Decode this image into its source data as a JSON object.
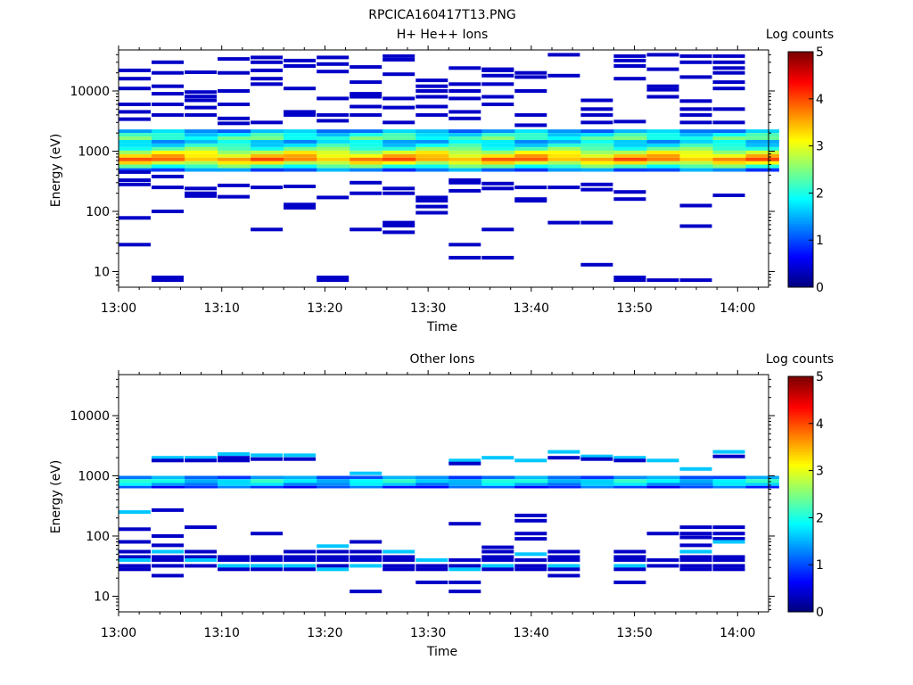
{
  "figure": {
    "title": "RPCICA160417T13.PNG"
  },
  "colorbar": {
    "label": "Log counts",
    "ticks": [
      "0",
      "1",
      "2",
      "3",
      "4",
      "5"
    ],
    "range": [
      0,
      5
    ],
    "colormap": "jet"
  },
  "chart_data": [
    {
      "type": "heatmap",
      "title": "H+ He++ Ions",
      "xlabel": "Time",
      "ylabel": "Energy (eV)",
      "x_range_minutes": [
        0,
        63
      ],
      "y_scale": "log",
      "y_range": [
        5.5,
        48000
      ],
      "x_ticks": [
        "13:00",
        "13:10",
        "13:20",
        "13:30",
        "13:40",
        "13:50",
        "14:00"
      ],
      "y_ticks": [
        "10",
        "100",
        "1000",
        "10000"
      ],
      "time_bin_minutes": 3.2,
      "time_bins": 20,
      "bands": [
        {
          "e_lo": 2000,
          "e_hi": 2300,
          "value": 1.4
        },
        {
          "e_lo": 1750,
          "e_hi": 2000,
          "value": 1.9
        },
        {
          "e_lo": 1530,
          "e_hi": 1750,
          "value": 2.2
        },
        {
          "e_lo": 1340,
          "e_hi": 1530,
          "value": 1.6
        },
        {
          "e_lo": 1170,
          "e_hi": 1340,
          "value": 1.9
        },
        {
          "e_lo": 1020,
          "e_hi": 1170,
          "value": 2.3
        },
        {
          "e_lo": 890,
          "e_hi": 1020,
          "value": 2.9
        },
        {
          "e_lo": 780,
          "e_hi": 890,
          "value": 3.3
        },
        {
          "e_lo": 680,
          "e_hi": 780,
          "value": 3.7
        },
        {
          "e_lo": 600,
          "e_hi": 680,
          "value": 3.0
        },
        {
          "e_lo": 520,
          "e_hi": 600,
          "value": 2.2
        },
        {
          "e_lo": 455,
          "e_hi": 520,
          "value": 1.2
        }
      ],
      "sparse": [
        {
          "t": 0,
          "e": [
            22000,
            16000,
            11000,
            6000,
            4500,
            3400,
            450,
            330,
            280,
            78,
            28
          ]
        },
        {
          "t": 1,
          "e": [
            30000,
            20000,
            12000,
            9000,
            6000,
            4000,
            380,
            250,
            100,
            8,
            7.2
          ]
        },
        {
          "t": 2,
          "e": [
            20500,
            9600,
            8100,
            7000,
            5300,
            4000,
            240,
            200,
            180
          ]
        },
        {
          "t": 3,
          "e": [
            34000,
            20000,
            10000,
            6000,
            3500,
            2900,
            270,
            175
          ]
        },
        {
          "t": 4,
          "e": [
            36000,
            30000,
            22000,
            16000,
            13000,
            3000,
            250,
            50
          ]
        },
        {
          "t": 5,
          "e": [
            32000,
            26000,
            11000,
            4500,
            4000,
            260,
            130,
            115
          ]
        },
        {
          "t": 6,
          "e": [
            36000,
            28000,
            21000,
            7500,
            4000,
            3200,
            170,
            8,
            7.2
          ]
        },
        {
          "t": 7,
          "e": [
            25000,
            14000,
            9000,
            8000,
            5500,
            4000,
            300,
            200,
            50
          ]
        },
        {
          "t": 8,
          "e": [
            38000,
            33000,
            19000,
            7500,
            5300,
            3000,
            240,
            200,
            65,
            58,
            45
          ]
        },
        {
          "t": 9,
          "e": [
            15000,
            12000,
            10000,
            8000,
            5500,
            4000,
            170,
            150,
            120,
            95
          ]
        },
        {
          "t": 10,
          "e": [
            24000,
            13000,
            10000,
            7500,
            4500,
            3500,
            330,
            300,
            220,
            28,
            17
          ]
        },
        {
          "t": 11,
          "e": [
            23000,
            22000,
            18000,
            13000,
            8000,
            6000,
            290,
            240,
            50,
            17
          ]
        },
        {
          "t": 12,
          "e": [
            20000,
            17000,
            10000,
            4000,
            2700,
            250,
            160,
            150
          ]
        },
        {
          "t": 13,
          "e": [
            40000,
            18000,
            250,
            65
          ]
        },
        {
          "t": 14,
          "e": [
            7000,
            5000,
            4000,
            3000,
            280,
            230,
            65,
            13
          ]
        },
        {
          "t": 15,
          "e": [
            38000,
            32000,
            26000,
            16000,
            3100,
            210,
            160,
            8,
            7.2
          ]
        },
        {
          "t": 16,
          "e": [
            40000,
            23000,
            12000,
            10500,
            8000,
            7.2
          ]
        },
        {
          "t": 17,
          "e": [
            38000,
            30000,
            17000,
            6800,
            5000,
            4000,
            3000,
            125,
            57,
            7.2
          ]
        },
        {
          "t": 18,
          "e": [
            38000,
            30000,
            24000,
            20000,
            14000,
            11000,
            5000,
            3000,
            185
          ]
        }
      ],
      "colorbar": {
        "label": "Log counts",
        "range": [
          0,
          5
        ]
      }
    },
    {
      "type": "heatmap",
      "title": "Other Ions",
      "xlabel": "Time",
      "ylabel": "Energy (eV)",
      "x_range_minutes": [
        0,
        63
      ],
      "y_scale": "log",
      "y_range": [
        5.5,
        48000
      ],
      "x_ticks": [
        "13:00",
        "13:10",
        "13:20",
        "13:30",
        "13:40",
        "13:50",
        "14:00"
      ],
      "y_ticks": [
        "10",
        "100",
        "1000",
        "10000"
      ],
      "time_bin_minutes": 3.2,
      "time_bins": 20,
      "bands": [
        {
          "e_lo": 880,
          "e_hi": 1000,
          "value": 1.2
        },
        {
          "e_lo": 760,
          "e_hi": 880,
          "value": 1.8
        },
        {
          "e_lo": 680,
          "e_hi": 760,
          "value": 1.5
        },
        {
          "e_lo": 620,
          "e_hi": 680,
          "value": 0.9
        }
      ],
      "sparse": [
        {
          "t": 0,
          "e": [
            250,
            130,
            80,
            55,
            45,
            40,
            32,
            28
          ]
        },
        {
          "t": 1,
          "e": [
            2000,
            1800,
            270,
            100,
            70,
            55,
            45,
            40,
            32,
            22
          ]
        },
        {
          "t": 2,
          "e": [
            2000,
            1800,
            140,
            55,
            45,
            40,
            32
          ]
        },
        {
          "t": 3,
          "e": [
            2300,
            2000,
            1800,
            45,
            40,
            32,
            28
          ]
        },
        {
          "t": 4,
          "e": [
            2200,
            1900,
            110,
            45,
            40,
            32,
            28
          ]
        },
        {
          "t": 5,
          "e": [
            2200,
            1900,
            55,
            45,
            40,
            32,
            28
          ]
        },
        {
          "t": 6,
          "e": [
            68,
            55,
            45,
            40,
            32,
            28
          ]
        },
        {
          "t": 7,
          "e": [
            1100,
            80,
            55,
            45,
            40,
            32,
            12
          ]
        },
        {
          "t": 8,
          "e": [
            55,
            45,
            40,
            32,
            28
          ]
        },
        {
          "t": 9,
          "e": [
            40,
            32,
            28,
            17
          ]
        },
        {
          "t": 10,
          "e": [
            1800,
            1600,
            160,
            40,
            32,
            28,
            17,
            12
          ]
        },
        {
          "t": 11,
          "e": [
            2000,
            65,
            55,
            45,
            40,
            32,
            28
          ]
        },
        {
          "t": 12,
          "e": [
            1800,
            220,
            180,
            110,
            90,
            50,
            40,
            32,
            28
          ]
        },
        {
          "t": 13,
          "e": [
            2500,
            2000,
            55,
            45,
            40,
            32,
            28,
            22
          ]
        },
        {
          "t": 14,
          "e": [
            2100,
            1900
          ]
        },
        {
          "t": 15,
          "e": [
            2000,
            1800,
            55,
            45,
            40,
            32,
            28,
            17
          ]
        },
        {
          "t": 16,
          "e": [
            1800,
            110,
            40,
            32
          ]
        },
        {
          "t": 17,
          "e": [
            1300,
            140,
            110,
            95,
            70,
            55,
            45,
            40,
            32,
            28
          ]
        },
        {
          "t": 18,
          "e": [
            2500,
            2100,
            140,
            110,
            90,
            80,
            45,
            40,
            32,
            28
          ]
        }
      ],
      "colorbar": {
        "label": "Log counts",
        "range": [
          0,
          5
        ]
      }
    }
  ]
}
